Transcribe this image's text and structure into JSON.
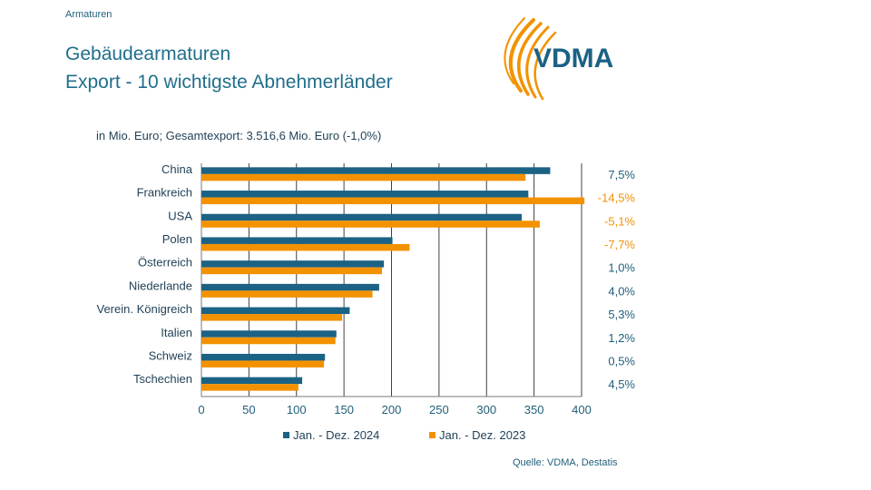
{
  "header": {
    "section": "Armaturen",
    "title_line1": "Gebäudearmaturen",
    "title_line2": "Export - 10 wichtigste Abnehmerländer",
    "subtitle": "in Mio. Euro; Gesamtexport: 3.516,6 Mio. Euro (-1,0%)",
    "logo_text": "VDMA"
  },
  "footer": {
    "source": "Quelle: VDMA, Destatis"
  },
  "colors": {
    "series_2024": "#1b6285",
    "series_2023": "#f39200",
    "positive": "#1f5f7a",
    "negative": "#f39200",
    "grid": "#404040"
  },
  "chart_data": {
    "type": "bar",
    "orientation": "horizontal",
    "categories": [
      "China",
      "Frankreich",
      "USA",
      "Polen",
      "Österreich",
      "Niederlande",
      "Verein. Königreich",
      "Italien",
      "Schweiz",
      "Tschechien"
    ],
    "series": [
      {
        "name": "Jan. - Dez. 2024",
        "values": [
          367,
          344,
          337,
          201,
          192,
          187,
          156,
          142,
          130,
          106
        ]
      },
      {
        "name": "Jan. - Dez. 2023",
        "values": [
          341,
          403,
          356,
          219,
          190,
          180,
          148,
          141,
          129,
          102
        ]
      }
    ],
    "changes": [
      "7,5%",
      "-14,5%",
      "-5,1%",
      "-7,7%",
      "1,0%",
      "4,0%",
      "5,3%",
      "1,2%",
      "0,5%",
      "4,5%"
    ],
    "xlim": [
      0,
      400
    ],
    "xticks": [
      0,
      50,
      100,
      150,
      200,
      250,
      300,
      350,
      400
    ],
    "grid": true,
    "legend_position": "bottom"
  }
}
